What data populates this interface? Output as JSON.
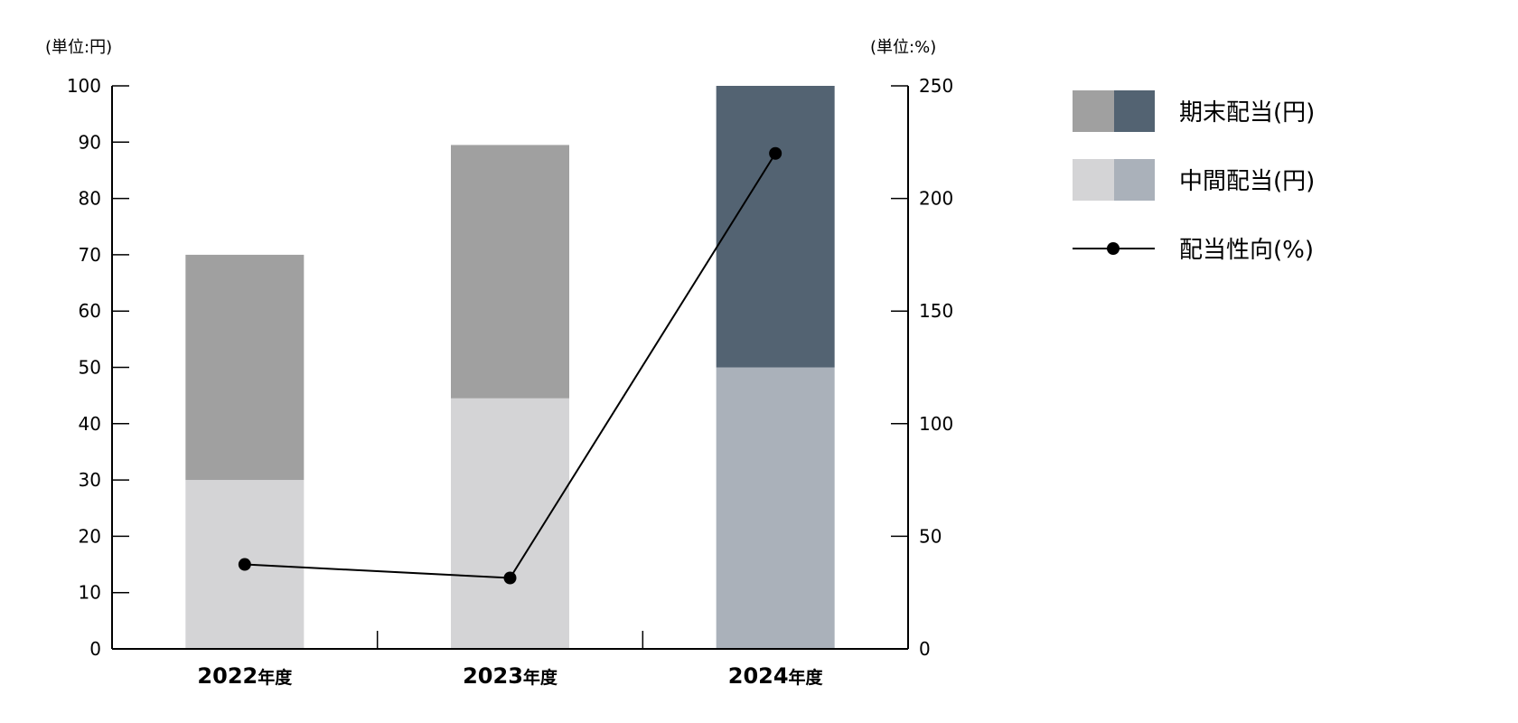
{
  "chart_data": {
    "type": "bar",
    "stacked": true,
    "categories": [
      {
        "year": "2022",
        "suffix": "年度"
      },
      {
        "year": "2023",
        "suffix": "年度"
      },
      {
        "year": "2024",
        "suffix": "年度"
      }
    ],
    "series": [
      {
        "name": "中間配当(円)",
        "key": "interim",
        "values": [
          30,
          44.5,
          50
        ],
        "axis": "left",
        "colors": [
          "#d4d4d6",
          "#d4d4d6",
          "#aab1ba"
        ]
      },
      {
        "name": "期末配当(円)",
        "key": "yearend",
        "values": [
          40,
          45,
          50
        ],
        "axis": "left",
        "colors": [
          "#a0a0a0",
          "#a0a0a0",
          "#536372"
        ]
      },
      {
        "name": "配当性向(%)",
        "key": "payout",
        "type": "line",
        "values": [
          37.5,
          31.5,
          220
        ],
        "axis": "right",
        "color": "#000000"
      }
    ],
    "left_axis": {
      "unit_label": "(単位:円)",
      "ylim": [
        0,
        100
      ],
      "ticks": [
        0,
        10,
        20,
        30,
        40,
        50,
        60,
        70,
        80,
        90,
        100
      ]
    },
    "right_axis": {
      "unit_label": "(単位:%)",
      "ylim": [
        0,
        250
      ],
      "ticks": [
        0,
        50,
        100,
        150,
        200,
        250
      ]
    },
    "legend": {
      "position": "right",
      "items": [
        {
          "label": "期末配当(円)",
          "kind": "bar-pair",
          "colors": [
            "#a0a0a0",
            "#536372"
          ]
        },
        {
          "label": "中間配当(円)",
          "kind": "bar-pair",
          "colors": [
            "#d4d4d6",
            "#aab1ba"
          ]
        },
        {
          "label": "配当性向(%)",
          "kind": "line-marker",
          "color": "#000000"
        }
      ]
    }
  }
}
